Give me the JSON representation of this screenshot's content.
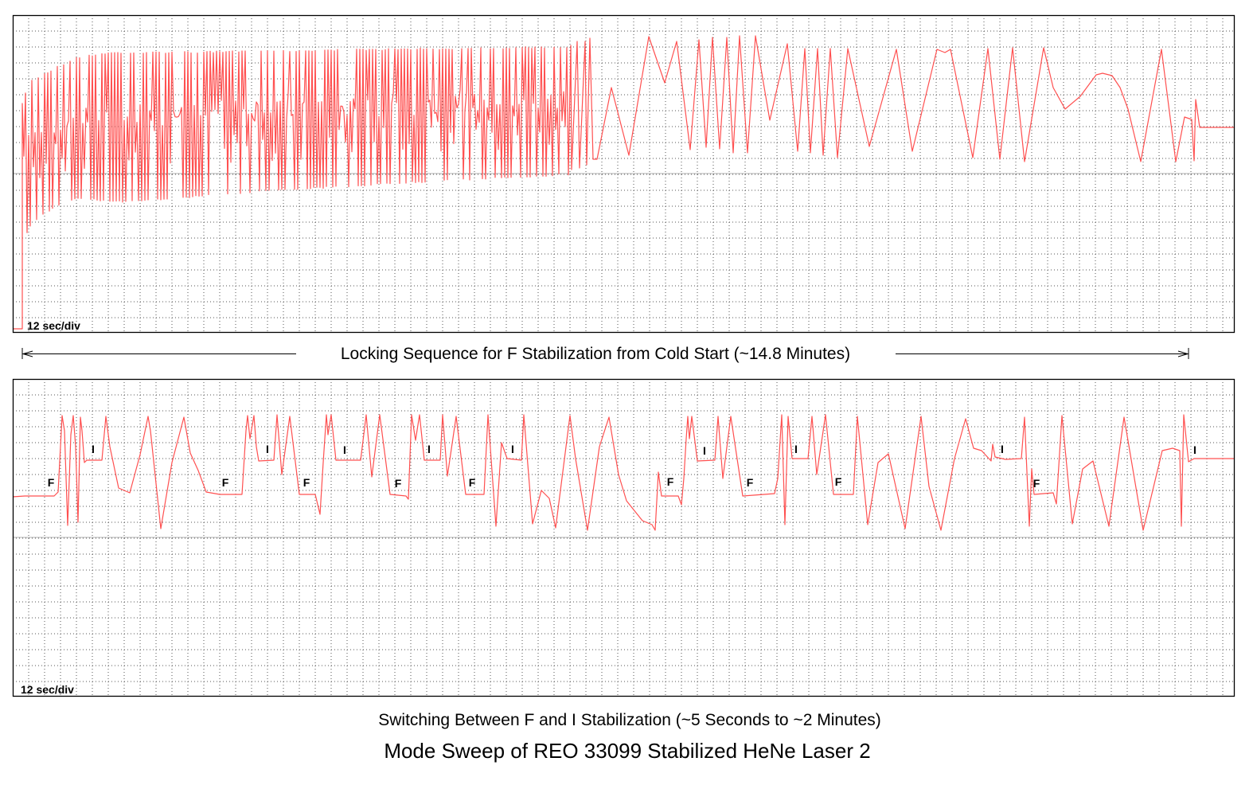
{
  "colors": {
    "trace": "#ff5050",
    "grid": "#555555",
    "center": "#b0b0b0",
    "frame": "#000000"
  },
  "chart_data": [
    {
      "type": "line",
      "name": "locking-sequence",
      "caption": "Locking Sequence for F Stabilization from Cold Start (~14.8 Minutes)",
      "scale_label": "12 sec/div",
      "x_unit": "div",
      "y_unit": "div",
      "xlim": [
        0,
        76.7
      ],
      "ylim": [
        -10,
        10
      ],
      "grid": true,
      "dense_section": {
        "start": [
          [
            0,
            -9.75
          ],
          [
            0.6,
            -9.75
          ]
        ],
        "x_range": [
          0.6,
          35.0
        ],
        "period": 0.2,
        "upper_envelope": [
          [
            0.6,
            4.4
          ],
          [
            1.0,
            5.8
          ],
          [
            2.7,
            6.7
          ],
          [
            4,
            7.3
          ],
          [
            6,
            7.65
          ],
          [
            10,
            7.65
          ],
          [
            20,
            7.8
          ],
          [
            35,
            8.0
          ]
        ],
        "lower_envelope": [
          [
            0.6,
            -4.5
          ],
          [
            1.0,
            -3.5
          ],
          [
            2,
            -2.5
          ],
          [
            4,
            -1.6
          ],
          [
            7,
            -1.85
          ],
          [
            15,
            -1.2
          ],
          [
            25,
            -0.6
          ],
          [
            35,
            -0.1
          ]
        ]
      },
      "points": [
        [
          35.05,
          8.05
        ],
        [
          35.1,
          0.25
        ],
        [
          35.45,
          8.3
        ],
        [
          35.6,
          0.35
        ],
        [
          35.95,
          8.3
        ],
        [
          36.05,
          0.55
        ],
        [
          36.25,
          8.5
        ],
        [
          36.45,
          0.9
        ],
        [
          36.7,
          0.9
        ],
        [
          37.6,
          5.4
        ],
        [
          38.7,
          1.15
        ],
        [
          39.95,
          8.6
        ],
        [
          40.95,
          5.7
        ],
        [
          41.7,
          8.3
        ],
        [
          42.55,
          1.5
        ],
        [
          43.1,
          8.4
        ],
        [
          43.55,
          1.65
        ],
        [
          43.95,
          8.55
        ],
        [
          44.4,
          1.55
        ],
        [
          44.85,
          8.55
        ],
        [
          45.25,
          1.3
        ],
        [
          45.65,
          8.65
        ],
        [
          46.15,
          1.3
        ],
        [
          46.65,
          8.65
        ],
        [
          47.55,
          3.35
        ],
        [
          48.65,
          8.15
        ],
        [
          49.3,
          1.4
        ],
        [
          49.75,
          7.85
        ],
        [
          50.1,
          1.3
        ],
        [
          50.55,
          7.85
        ],
        [
          50.9,
          1.15
        ],
        [
          51.35,
          7.85
        ],
        [
          51.8,
          1.0
        ],
        [
          52.45,
          7.85
        ],
        [
          53.8,
          1.7
        ],
        [
          55.5,
          7.8
        ],
        [
          56.5,
          1.4
        ],
        [
          58.05,
          7.8
        ],
        [
          58.55,
          7.6
        ],
        [
          58.9,
          7.8
        ],
        [
          60.3,
          1.0
        ],
        [
          61.25,
          7.85
        ],
        [
          62.0,
          0.9
        ],
        [
          62.8,
          7.9
        ],
        [
          63.55,
          0.75
        ],
        [
          64.75,
          7.9
        ],
        [
          65.35,
          5.4
        ],
        [
          66.1,
          4.05
        ],
        [
          67.05,
          4.85
        ],
        [
          68.05,
          6.2
        ],
        [
          68.45,
          6.3
        ],
        [
          69.05,
          6.15
        ],
        [
          69.55,
          5.4
        ],
        [
          70.05,
          4.05
        ],
        [
          70.85,
          0.75
        ],
        [
          72.15,
          7.8
        ],
        [
          73.05,
          0.75
        ],
        [
          73.6,
          3.55
        ],
        [
          74.05,
          3.4
        ],
        [
          74.2,
          0.8
        ],
        [
          74.3,
          4.65
        ],
        [
          74.55,
          2.9
        ],
        [
          76.7,
          2.9
        ]
      ]
    },
    {
      "type": "line",
      "name": "switching-f-i",
      "caption": "Switching Between F and I Stabilization (~5 Seconds to ~2 Minutes)",
      "scale_label": "12 sec/div",
      "x_unit": "div",
      "y_unit": "div",
      "xlim": [
        0,
        76.7
      ],
      "ylim": [
        -10,
        10
      ],
      "grid": true,
      "points": [
        [
          0,
          2.55
        ],
        [
          0.75,
          2.6
        ],
        [
          2.6,
          2.6
        ],
        [
          2.85,
          2.85
        ],
        [
          3.1,
          7.65
        ],
        [
          3.25,
          6.7
        ],
        [
          3.45,
          0.75
        ],
        [
          3.65,
          6.45
        ],
        [
          3.8,
          7.65
        ],
        [
          3.95,
          5.7
        ],
        [
          4.1,
          0.95
        ],
        [
          4.25,
          7.55
        ],
        [
          4.35,
          6.7
        ],
        [
          4.5,
          4.7
        ],
        [
          4.65,
          4.85
        ],
        [
          5.6,
          4.85
        ],
        [
          5.85,
          7.6
        ],
        [
          6.1,
          5.7
        ],
        [
          6.65,
          3.1
        ],
        [
          7.35,
          2.8
        ],
        [
          8.0,
          5.2
        ],
        [
          8.5,
          7.6
        ],
        [
          8.65,
          6.7
        ],
        [
          9.3,
          0.55
        ],
        [
          10.0,
          4.7
        ],
        [
          10.75,
          7.55
        ],
        [
          11.15,
          5.3
        ],
        [
          11.65,
          4.2
        ],
        [
          12.15,
          2.85
        ],
        [
          13.0,
          2.7
        ],
        [
          14.4,
          2.7
        ],
        [
          14.65,
          6.7
        ],
        [
          14.75,
          7.65
        ],
        [
          14.9,
          6.2
        ],
        [
          15.15,
          7.65
        ],
        [
          15.3,
          5.7
        ],
        [
          15.45,
          4.8
        ],
        [
          16.4,
          4.85
        ],
        [
          16.6,
          7.7
        ],
        [
          16.9,
          3.95
        ],
        [
          17.4,
          7.6
        ],
        [
          18.0,
          2.7
        ],
        [
          19.0,
          2.7
        ],
        [
          19.3,
          1.45
        ],
        [
          19.5,
          4.7
        ],
        [
          19.7,
          7.7
        ],
        [
          19.8,
          6.45
        ],
        [
          20.0,
          7.7
        ],
        [
          20.3,
          4.85
        ],
        [
          21.85,
          4.85
        ],
        [
          22.2,
          7.7
        ],
        [
          22.55,
          3.8
        ],
        [
          23.05,
          7.7
        ],
        [
          23.7,
          2.7
        ],
        [
          24.7,
          2.6
        ],
        [
          24.85,
          2.4
        ],
        [
          25.05,
          7.7
        ],
        [
          25.3,
          6.1
        ],
        [
          25.55,
          7.7
        ],
        [
          25.85,
          4.85
        ],
        [
          26.85,
          4.85
        ],
        [
          27.0,
          7.7
        ],
        [
          27.3,
          3.85
        ],
        [
          27.85,
          7.6
        ],
        [
          28.45,
          2.7
        ],
        [
          29.6,
          2.7
        ],
        [
          29.85,
          7.7
        ],
        [
          30.35,
          0.7
        ],
        [
          30.7,
          5.95
        ],
        [
          31.05,
          4.95
        ],
        [
          31.95,
          4.85
        ],
        [
          32.1,
          7.7
        ],
        [
          32.65,
          0.85
        ],
        [
          33.2,
          2.95
        ],
        [
          33.7,
          2.45
        ],
        [
          34.1,
          0.6
        ],
        [
          35.0,
          7.65
        ],
        [
          35.35,
          4.95
        ],
        [
          36.1,
          0.45
        ],
        [
          36.85,
          5.7
        ],
        [
          37.45,
          7.55
        ],
        [
          38.05,
          3.95
        ],
        [
          38.55,
          2.3
        ],
        [
          39.55,
          1.05
        ],
        [
          40.15,
          0.8
        ],
        [
          40.35,
          0.45
        ],
        [
          40.55,
          4.1
        ],
        [
          40.75,
          2.6
        ],
        [
          41.8,
          2.6
        ],
        [
          42.0,
          2.05
        ],
        [
          42.15,
          3.7
        ],
        [
          42.3,
          6.2
        ],
        [
          42.4,
          7.6
        ],
        [
          42.5,
          6.2
        ],
        [
          42.65,
          7.6
        ],
        [
          43.0,
          4.8
        ],
        [
          44.1,
          4.85
        ],
        [
          44.3,
          7.6
        ],
        [
          44.6,
          3.7
        ],
        [
          45.1,
          7.6
        ],
        [
          45.85,
          2.6
        ],
        [
          47.85,
          2.75
        ],
        [
          48.05,
          3.7
        ],
        [
          48.3,
          7.7
        ],
        [
          48.5,
          0.8
        ],
        [
          48.7,
          7.6
        ],
        [
          48.95,
          4.95
        ],
        [
          49.95,
          4.95
        ],
        [
          50.2,
          7.6
        ],
        [
          50.5,
          3.95
        ],
        [
          51.05,
          7.7
        ],
        [
          51.55,
          2.7
        ],
        [
          52.8,
          2.7
        ],
        [
          53.05,
          7.6
        ],
        [
          53.7,
          0.8
        ],
        [
          54.35,
          4.7
        ],
        [
          55.0,
          5.25
        ],
        [
          56.05,
          0.55
        ],
        [
          57.05,
          7.6
        ],
        [
          57.55,
          3.2
        ],
        [
          58.3,
          0.45
        ],
        [
          59.15,
          4.95
        ],
        [
          59.85,
          7.45
        ],
        [
          60.35,
          5.6
        ],
        [
          60.85,
          5.45
        ],
        [
          61.45,
          4.8
        ],
        [
          61.55,
          5.85
        ],
        [
          61.7,
          5.05
        ],
        [
          62.35,
          4.9
        ],
        [
          63.35,
          4.95
        ],
        [
          63.55,
          7.55
        ],
        [
          63.85,
          0.7
        ],
        [
          64.0,
          4.3
        ],
        [
          64.15,
          2.7
        ],
        [
          65.35,
          2.8
        ],
        [
          65.55,
          2.1
        ],
        [
          65.9,
          7.65
        ],
        [
          66.55,
          0.85
        ],
        [
          67.2,
          4.3
        ],
        [
          67.85,
          4.8
        ],
        [
          68.85,
          0.7
        ],
        [
          69.8,
          7.55
        ],
        [
          71.0,
          0.45
        ],
        [
          72.2,
          5.45
        ],
        [
          72.85,
          5.6
        ],
        [
          73.3,
          5.45
        ],
        [
          73.4,
          0.7
        ],
        [
          73.55,
          7.7
        ],
        [
          73.85,
          4.75
        ],
        [
          74.2,
          4.95
        ],
        [
          76.7,
          4.95
        ]
      ],
      "annotations": [
        {
          "text": "F",
          "x": 2.4,
          "y": 3.45
        },
        {
          "text": "I",
          "x": 5.05,
          "y": 5.55
        },
        {
          "text": "F",
          "x": 13.35,
          "y": 3.45
        },
        {
          "text": "I",
          "x": 16.0,
          "y": 5.55
        },
        {
          "text": "F",
          "x": 18.45,
          "y": 3.45
        },
        {
          "text": "I",
          "x": 20.85,
          "y": 5.5
        },
        {
          "text": "F",
          "x": 24.2,
          "y": 3.4
        },
        {
          "text": "I",
          "x": 26.15,
          "y": 5.55
        },
        {
          "text": "F",
          "x": 28.85,
          "y": 3.45
        },
        {
          "text": "I",
          "x": 31.4,
          "y": 5.55
        },
        {
          "text": "F",
          "x": 41.3,
          "y": 3.5
        },
        {
          "text": "I",
          "x": 43.45,
          "y": 5.45
        },
        {
          "text": "F",
          "x": 46.3,
          "y": 3.45
        },
        {
          "text": "I",
          "x": 49.2,
          "y": 5.55
        },
        {
          "text": "F",
          "x": 51.85,
          "y": 3.5
        },
        {
          "text": "I",
          "x": 62.15,
          "y": 5.55
        },
        {
          "text": "F",
          "x": 64.3,
          "y": 3.4
        },
        {
          "text": "I",
          "x": 74.25,
          "y": 5.5
        }
      ]
    }
  ],
  "title": "Mode Sweep of REO 33099 Stabilized HeNe Laser 2"
}
